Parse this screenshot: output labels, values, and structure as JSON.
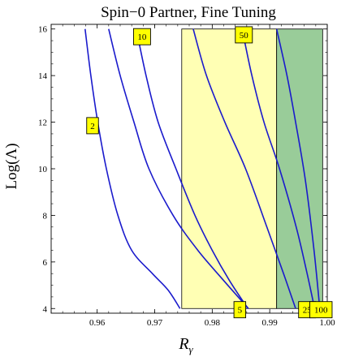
{
  "chart_data": {
    "type": "line",
    "title": "Spin−0 Partner, Fine Tuning",
    "xlabel": "Rγ",
    "xlabel_main": "R",
    "xlabel_sub": "γ",
    "ylabel": "Log(Λ)",
    "xlim": [
      0.952,
      1.0
    ],
    "ylim": [
      3.8,
      16.2
    ],
    "x_ticks": [
      0.96,
      0.97,
      0.98,
      0.99,
      1.0
    ],
    "x_tick_labels": [
      "0.96",
      "0.97",
      "0.98",
      "0.99",
      "1.00"
    ],
    "y_ticks": [
      4,
      6,
      8,
      10,
      12,
      14,
      16
    ],
    "y_tick_labels": [
      "4",
      "6",
      "8",
      "10",
      "12",
      "14",
      "16"
    ],
    "grid": false,
    "colors": {
      "curve": "#1a1acc",
      "yellow_band": "#ffffb4",
      "green_band": "#99cc99",
      "label_box": "#ffff00"
    },
    "regions": [
      {
        "kind": "yellow-band",
        "x0": 0.9747,
        "x1": 0.9912,
        "y0": 4.0,
        "y1": 16.0
      },
      {
        "kind": "green-band",
        "x0": 0.9912,
        "x1": 0.9992,
        "y0": 4.0,
        "y1": 16.0
      }
    ],
    "series": [
      {
        "label": "2",
        "x": [
          0.9579,
          0.9589,
          0.9601,
          0.9616,
          0.9636,
          0.966,
          0.9696,
          0.9723,
          0.9744
        ],
        "y": [
          16.0,
          14.0,
          12.0,
          10.0,
          8.0,
          6.5,
          5.5,
          4.8,
          4.0
        ],
        "label_at": [
          0.9592,
          11.85
        ]
      },
      {
        "label": "10",
        "x": [
          0.962,
          0.964,
          0.9664,
          0.969,
          0.9732,
          0.9775,
          0.982,
          0.9863
        ],
        "y": [
          16.0,
          14.0,
          12.0,
          10.0,
          8.0,
          6.5,
          5.2,
          4.0
        ],
        "label_at": [
          0.9678,
          15.67
        ]
      },
      {
        "label": "5",
        "x": [
          0.9668,
          0.9685,
          0.9706,
          0.9737,
          0.977,
          0.98,
          0.983,
          0.9862
        ],
        "y": [
          16.0,
          14.0,
          12.0,
          10.0,
          8.0,
          6.5,
          5.2,
          4.0
        ],
        "label_at": [
          0.9848,
          3.95
        ]
      },
      {
        "label": "50",
        "x": [
          0.9767,
          0.979,
          0.9822,
          0.9858,
          0.9895,
          0.9924,
          0.9945
        ],
        "y": [
          16.0,
          14.0,
          12.0,
          10.0,
          7.5,
          5.5,
          4.0
        ],
        "label_at": [
          0.9855,
          15.75
        ]
      },
      {
        "label": "25",
        "x": [
          0.9852,
          0.9869,
          0.989,
          0.9917,
          0.9946,
          0.9965,
          0.9978
        ],
        "y": [
          16.0,
          14.0,
          12.0,
          10.0,
          7.5,
          5.5,
          4.0
        ],
        "label_at": [
          0.9965,
          3.95
        ]
      },
      {
        "label": "100",
        "x": [
          0.9912,
          0.993,
          0.9945,
          0.9962,
          0.9977,
          0.9987
        ],
        "y": [
          16.0,
          14.0,
          12.0,
          9.5,
          6.5,
          4.0
        ],
        "label_at": [
          0.9989,
          3.95
        ]
      }
    ]
  }
}
